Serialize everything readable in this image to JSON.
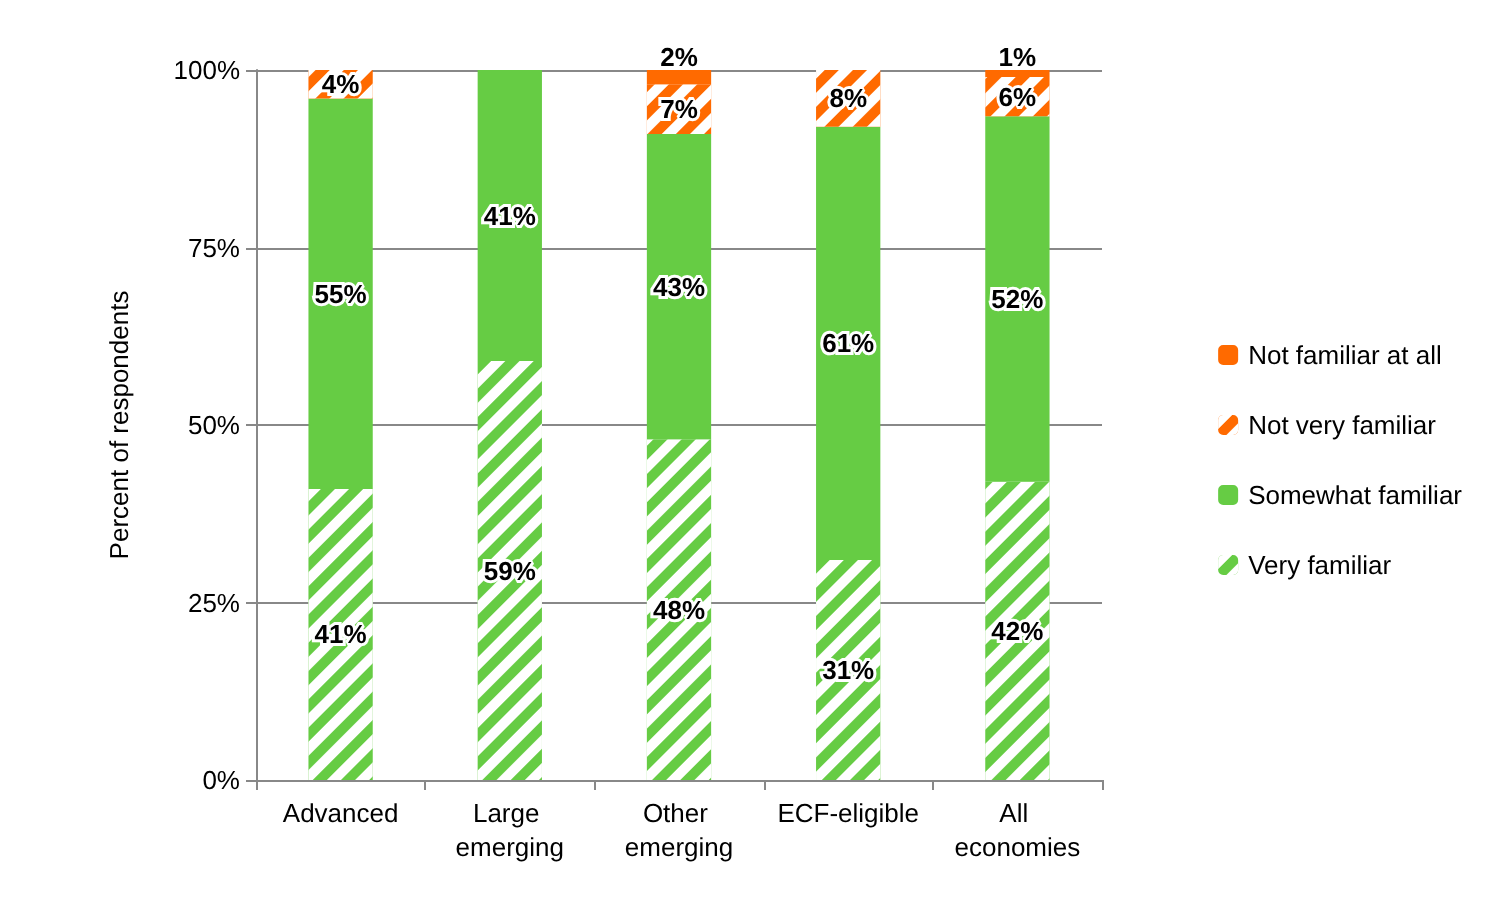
{
  "chart_data": {
    "type": "bar",
    "stacked": true,
    "ylabel": "Percent of respondents",
    "categories": [
      "Advanced",
      "Large emerging",
      "Other emerging",
      "ECF-eligible",
      "All economies"
    ],
    "series": [
      {
        "name": "Very familiar",
        "color": "#66cc44",
        "values": [
          41,
          59,
          48,
          31,
          42
        ],
        "value_labels": [
          "41%",
          "59%",
          "48%",
          "31%",
          "42%"
        ]
      },
      {
        "name": "Somewhat familiar",
        "color": "#66cc44",
        "values": [
          55,
          41,
          43,
          61,
          51.5
        ],
        "value_labels": [
          "55%",
          "41%",
          "43%",
          "61%",
          "52%"
        ]
      },
      {
        "name": "Not very familiar",
        "color": "#ff6a00",
        "values": [
          4,
          0,
          7,
          8,
          5.5
        ],
        "value_labels": [
          "4%",
          null,
          "7%",
          "8%",
          "6%"
        ]
      },
      {
        "name": "Not familiar at all",
        "color": "#ff6a00",
        "values": [
          0,
          0,
          2,
          0,
          1
        ],
        "value_labels": [
          null,
          null,
          "2%",
          null,
          "1%"
        ]
      }
    ],
    "ylim": [
      0,
      100
    ],
    "yticks": [
      {
        "value": 0,
        "label": "0%"
      },
      {
        "value": 25,
        "label": "25%"
      },
      {
        "value": 50,
        "label": "50%"
      },
      {
        "value": 75,
        "label": "75%"
      },
      {
        "value": 100,
        "label": "100%"
      }
    ],
    "grid": "y",
    "legend": "right"
  }
}
